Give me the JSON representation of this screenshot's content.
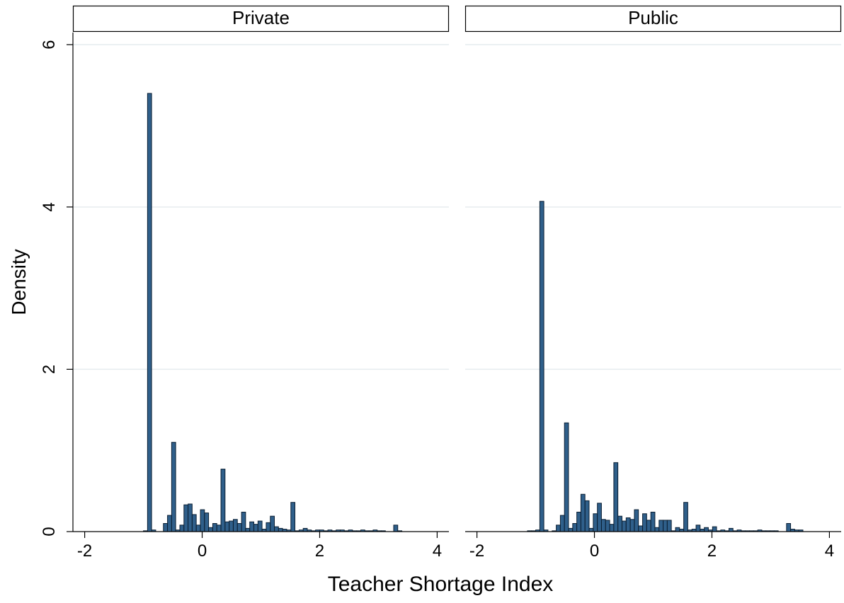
{
  "chart_data": {
    "type": "bar",
    "chart_subtype": "histogram",
    "ylabel": "Density",
    "xlabel": "Teacher Shortage Index",
    "xlim": [
      -2.2,
      4.2
    ],
    "ylim": [
      0,
      6.15
    ],
    "xticks": [
      -2,
      0,
      2,
      4
    ],
    "yticks": [
      0,
      2,
      4,
      6
    ],
    "grid": true,
    "bin_width": 0.069,
    "bar_color": "#2f5f8a",
    "bar_edge_color": "#0b1f33",
    "panels": [
      {
        "name": "Private",
        "x": [
          -1.0,
          -0.93,
          -0.86,
          -0.66,
          -0.59,
          -0.52,
          -0.45,
          -0.38,
          -0.31,
          -0.24,
          -0.17,
          -0.1,
          -0.03,
          0.04,
          0.11,
          0.18,
          0.25,
          0.32,
          0.39,
          0.46,
          0.53,
          0.6,
          0.67,
          0.74,
          0.81,
          0.88,
          0.95,
          1.02,
          1.09,
          1.16,
          1.23,
          1.3,
          1.37,
          1.44,
          1.51,
          1.58,
          1.65,
          1.72,
          1.79,
          1.86,
          1.93,
          2.0,
          2.07,
          2.14,
          2.21,
          2.28,
          2.35,
          2.42,
          2.49,
          2.56,
          2.63,
          2.7,
          2.77,
          2.84,
          2.91,
          2.98,
          3.05,
          3.26,
          3.33
        ],
        "values": [
          0.01,
          5.4,
          0.02,
          0.1,
          0.2,
          1.1,
          0.02,
          0.08,
          0.33,
          0.34,
          0.21,
          0.08,
          0.27,
          0.23,
          0.05,
          0.1,
          0.08,
          0.77,
          0.12,
          0.13,
          0.15,
          0.1,
          0.24,
          0.04,
          0.12,
          0.09,
          0.13,
          0.03,
          0.11,
          0.19,
          0.06,
          0.04,
          0.03,
          0.02,
          0.36,
          0.01,
          0.02,
          0.04,
          0.02,
          0.01,
          0.02,
          0.02,
          0.01,
          0.02,
          0.01,
          0.02,
          0.02,
          0.01,
          0.02,
          0.01,
          0.01,
          0.02,
          0.01,
          0.01,
          0.02,
          0.01,
          0.01,
          0.08,
          0.01
        ]
      },
      {
        "name": "Public",
        "x": [
          -1.14,
          -1.07,
          -1.0,
          -0.93,
          -0.86,
          -0.72,
          -0.65,
          -0.58,
          -0.51,
          -0.44,
          -0.37,
          -0.3,
          -0.23,
          -0.16,
          -0.09,
          -0.02,
          0.05,
          0.12,
          0.19,
          0.26,
          0.33,
          0.4,
          0.47,
          0.54,
          0.61,
          0.68,
          0.75,
          0.82,
          0.89,
          0.96,
          1.03,
          1.1,
          1.17,
          1.24,
          1.31,
          1.38,
          1.45,
          1.52,
          1.59,
          1.66,
          1.73,
          1.8,
          1.87,
          1.94,
          2.01,
          2.08,
          2.15,
          2.22,
          2.29,
          2.36,
          2.43,
          2.5,
          2.57,
          2.64,
          2.71,
          2.78,
          2.85,
          2.92,
          2.99,
          3.06,
          3.27,
          3.34,
          3.41,
          3.48
        ],
        "values": [
          0.01,
          0.01,
          0.02,
          4.07,
          0.02,
          0.01,
          0.08,
          0.2,
          1.34,
          0.04,
          0.1,
          0.24,
          0.46,
          0.38,
          0.04,
          0.22,
          0.35,
          0.15,
          0.14,
          0.09,
          0.85,
          0.19,
          0.13,
          0.17,
          0.15,
          0.27,
          0.07,
          0.22,
          0.14,
          0.24,
          0.05,
          0.14,
          0.14,
          0.14,
          0.01,
          0.05,
          0.03,
          0.36,
          0.02,
          0.03,
          0.08,
          0.03,
          0.05,
          0.02,
          0.06,
          0.01,
          0.02,
          0.01,
          0.04,
          0.01,
          0.02,
          0.01,
          0.01,
          0.01,
          0.01,
          0.02,
          0.01,
          0.01,
          0.01,
          0.01,
          0.1,
          0.03,
          0.02,
          0.02
        ]
      }
    ]
  }
}
